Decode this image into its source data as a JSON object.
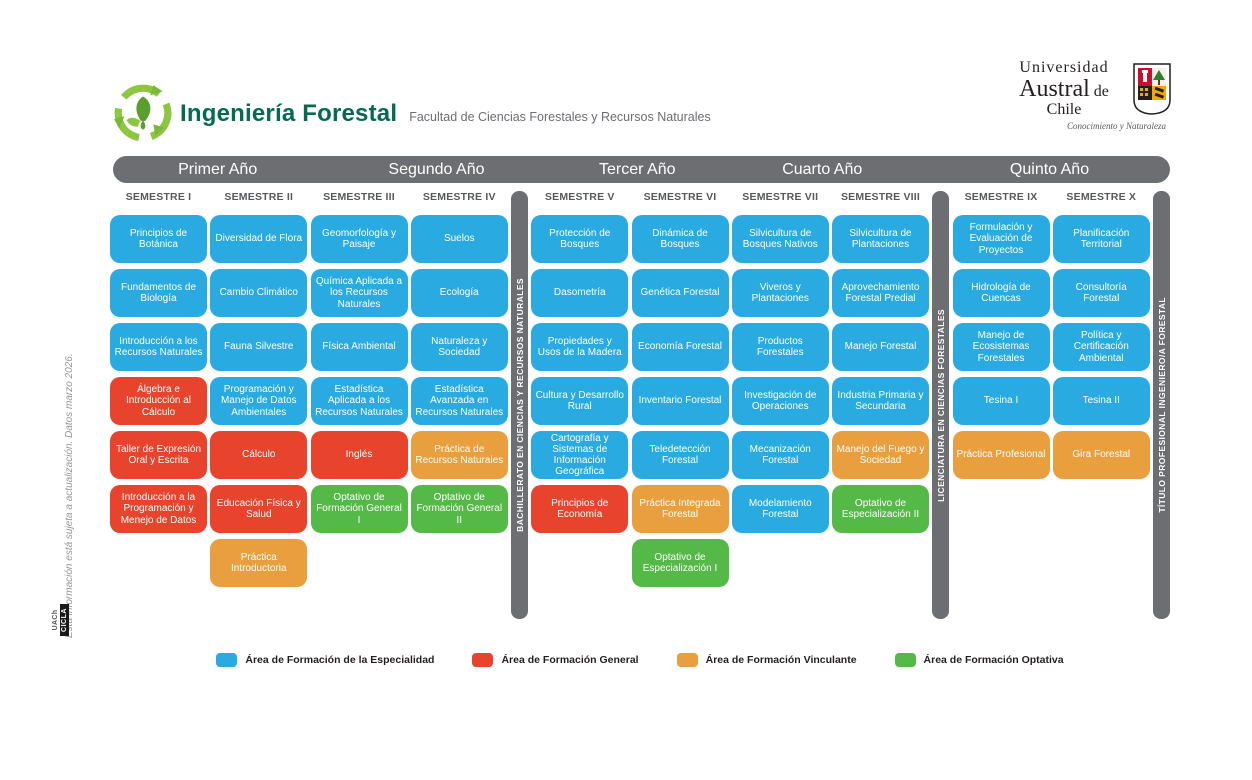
{
  "header": {
    "program_title": "Ingeniería Forestal",
    "faculty": "Facultad de Ciencias Forestales y Recursos Naturales",
    "university": {
      "line1": "Universidad",
      "line2_big": "Austral",
      "line2_small": "de Chile",
      "tagline": "Conocimiento y Naturaleza"
    }
  },
  "side_note": "Esta información está sujeta a actualización. Datos marzo 2026.",
  "side_logo": {
    "uach": "UACh",
    "cicla": "CICLA"
  },
  "colors": {
    "especialidad": "#29ABE2",
    "general": "#E8432C",
    "vinculante": "#EA9F3E",
    "optativa": "#55B948",
    "bar_gray": "#6D6E71",
    "brand_green": "#8DC63F",
    "title_green": "#046B52"
  },
  "years": [
    "Primer Año",
    "Segundo Año",
    "Tercer Año",
    "Cuarto Año",
    "Quinto Año"
  ],
  "milestones": [
    "BACHILLERATO EN CIENCIAS Y RECURSOS NATURALES",
    "LICENCIATURA EN CIENCIAS FORESTALES",
    "TÍTULO PROFESIONAL INGENIERO/A FORESTAL"
  ],
  "semesters": [
    {
      "label": "SEMESTRE I",
      "courses": [
        {
          "name": "Principios de Botánica",
          "area": "especialidad"
        },
        {
          "name": "Fundamentos de Biología",
          "area": "especialidad"
        },
        {
          "name": "Introducción a los Recursos Naturales",
          "area": "especialidad"
        },
        {
          "name": "Álgebra e Introducción al Cálculo",
          "area": "general"
        },
        {
          "name": "Taller de Expresión Oral y Escrita",
          "area": "general"
        },
        {
          "name": "Introducción a la Programación y Menejo de Datos",
          "area": "general"
        }
      ]
    },
    {
      "label": "SEMESTRE II",
      "courses": [
        {
          "name": "Diversidad de Flora",
          "area": "especialidad"
        },
        {
          "name": "Cambio Climático",
          "area": "especialidad"
        },
        {
          "name": "Fauna Silvestre",
          "area": "especialidad"
        },
        {
          "name": "Programación y Manejo de Datos Ambientales",
          "area": "especialidad"
        },
        {
          "name": "Cálculo",
          "area": "general"
        },
        {
          "name": "Educación Física y Salud",
          "area": "general"
        },
        {
          "name": "Práctica Introductoria",
          "area": "vinculante"
        }
      ]
    },
    {
      "label": "SEMESTRE III",
      "courses": [
        {
          "name": "Geomorfología y Paisaje",
          "area": "especialidad"
        },
        {
          "name": "Química Aplicada a los Recursos Naturales",
          "area": "especialidad"
        },
        {
          "name": "Física Ambiental",
          "area": "especialidad"
        },
        {
          "name": "Estadística Aplicada a los Recursos Naturales",
          "area": "especialidad"
        },
        {
          "name": "Inglés",
          "area": "general"
        },
        {
          "name": "Optativo de Formación General I",
          "area": "optativa"
        }
      ]
    },
    {
      "label": "SEMESTRE IV",
      "courses": [
        {
          "name": "Suelos",
          "area": "especialidad"
        },
        {
          "name": "Ecología",
          "area": "especialidad"
        },
        {
          "name": "Naturaleza y Sociedad",
          "area": "especialidad"
        },
        {
          "name": "Estadística Avanzada en Recursos Naturales",
          "area": "especialidad"
        },
        {
          "name": "Práctica de Recursos Naturales",
          "area": "vinculante"
        },
        {
          "name": "Optativo de Formación General II",
          "area": "optativa"
        }
      ]
    },
    {
      "label": "SEMESTRE V",
      "courses": [
        {
          "name": "Protección de Bosques",
          "area": "especialidad"
        },
        {
          "name": "Dasometría",
          "area": "especialidad"
        },
        {
          "name": "Propiedades y Usos de la Madera",
          "area": "especialidad"
        },
        {
          "name": "Cultura y Desarrollo Rural",
          "area": "especialidad"
        },
        {
          "name": "Cartografía y Sistemas de Información Geográfica",
          "area": "especialidad"
        },
        {
          "name": "Principios de Economía",
          "area": "general"
        }
      ]
    },
    {
      "label": "SEMESTRE VI",
      "courses": [
        {
          "name": "Dinámica de Bosques",
          "area": "especialidad"
        },
        {
          "name": "Genética Forestal",
          "area": "especialidad"
        },
        {
          "name": "Economía Forestal",
          "area": "especialidad"
        },
        {
          "name": "Inventario Forestal",
          "area": "especialidad"
        },
        {
          "name": "Teledetección Forestal",
          "area": "especialidad"
        },
        {
          "name": "Práctica Integrada Forestal",
          "area": "vinculante"
        },
        {
          "name": "Optativo de Especialización I",
          "area": "optativa"
        }
      ]
    },
    {
      "label": "SEMESTRE VII",
      "courses": [
        {
          "name": "Silvicultura de Bosques Nativos",
          "area": "especialidad"
        },
        {
          "name": "Viveros y Plantaciones",
          "area": "especialidad"
        },
        {
          "name": "Productos Forestales",
          "area": "especialidad"
        },
        {
          "name": "Investigación de Operaciones",
          "area": "especialidad"
        },
        {
          "name": "Mecanización Forestal",
          "area": "especialidad"
        },
        {
          "name": "Modelamiento Forestal",
          "area": "especialidad"
        }
      ]
    },
    {
      "label": "SEMESTRE VIII",
      "courses": [
        {
          "name": "Silvicultura de Plantaciones",
          "area": "especialidad"
        },
        {
          "name": "Aprovechamiento Forestal Predial",
          "area": "especialidad"
        },
        {
          "name": "Manejo Forestal",
          "area": "especialidad"
        },
        {
          "name": "Industria Primaria y Secundaria",
          "area": "especialidad"
        },
        {
          "name": "Manejo del Fuego y Sociedad",
          "area": "vinculante"
        },
        {
          "name": "Optativo de Especialización II",
          "area": "optativa"
        }
      ]
    },
    {
      "label": "SEMESTRE IX",
      "courses": [
        {
          "name": "Formulación y Evaluación de Proyectos",
          "area": "especialidad"
        },
        {
          "name": "Hidrología de Cuencas",
          "area": "especialidad"
        },
        {
          "name": "Manejo de Ecosistemas Forestales",
          "area": "especialidad"
        },
        {
          "name": "Tesina I",
          "area": "especialidad"
        },
        {
          "name": "Práctica Profesional",
          "area": "vinculante"
        }
      ]
    },
    {
      "label": "SEMESTRE X",
      "courses": [
        {
          "name": "Planificación Territorial",
          "area": "especialidad"
        },
        {
          "name": "Consultoría Forestal",
          "area": "especialidad"
        },
        {
          "name": "Política y Certificación Ambiental",
          "area": "especialidad"
        },
        {
          "name": "Tesina II",
          "area": "especialidad"
        },
        {
          "name": "Gira Forestal",
          "area": "vinculante"
        }
      ]
    }
  ],
  "legend": [
    {
      "label": "Área de Formación de la Especialidad",
      "area": "especialidad"
    },
    {
      "label": "Área de Formación General",
      "area": "general"
    },
    {
      "label": "Área de Formación Vinculante",
      "area": "vinculante"
    },
    {
      "label": "Área de Formación Optativa",
      "area": "optativa"
    }
  ]
}
